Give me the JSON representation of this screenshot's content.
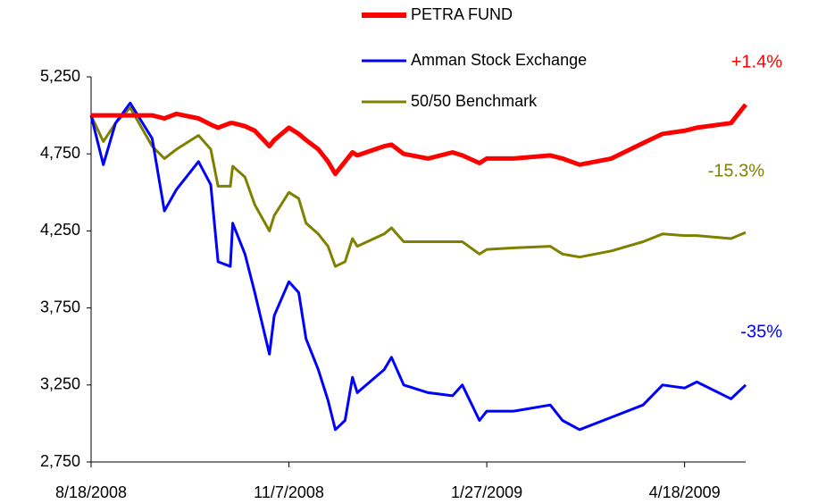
{
  "chart_data": {
    "type": "line",
    "x": [
      "8/18/2008",
      "8/23/2008",
      "8/28/2008",
      "9/3/2008",
      "9/12/2008",
      "9/17/2008",
      "9/22/2008",
      "10/1/2008",
      "10/6/2008",
      "10/9/2008",
      "10/14/2008",
      "10/15/2008",
      "10/20/2008",
      "10/24/2008",
      "10/30/2008",
      "11/1/2008",
      "11/7/2008",
      "11/11/2008",
      "11/14/2008",
      "11/19/2008",
      "11/23/2008",
      "11/26/2008",
      "11/30/2008",
      "12/3/2008",
      "12/5/2008",
      "12/16/2008",
      "12/19/2008",
      "12/24/2008",
      "1/3/2009",
      "1/13/2009",
      "1/17/2009",
      "1/24/2009",
      "1/27/2009",
      "2/7/2009",
      "2/22/2009",
      "2/27/2009",
      "3/6/2009",
      "3/19/2009",
      "4/1/2009",
      "4/9/2009",
      "4/18/2009",
      "4/23/2009",
      "5/7/2009",
      "5/13/2009"
    ],
    "series": [
      {
        "name": "PETRA FUND",
        "color": "#ff0000",
        "values": [
          5000,
          5000,
          5000,
          5000,
          5000,
          4980,
          5010,
          4980,
          4940,
          4920,
          4950,
          4950,
          4930,
          4900,
          4800,
          4840,
          4920,
          4880,
          4840,
          4780,
          4700,
          4620,
          4700,
          4760,
          4740,
          4800,
          4810,
          4750,
          4720,
          4760,
          4740,
          4690,
          4720,
          4720,
          4740,
          4720,
          4680,
          4720,
          4820,
          4880,
          4900,
          4920,
          4950,
          5070
        ]
      },
      {
        "name": "Amman Stock Exchange",
        "color": "#0000ff",
        "values": [
          5000,
          4680,
          4950,
          5080,
          4850,
          4380,
          4520,
          4700,
          4550,
          4050,
          4020,
          4300,
          4100,
          3850,
          3450,
          3700,
          3920,
          3850,
          3550,
          3350,
          3150,
          2960,
          3020,
          3300,
          3200,
          3350,
          3430,
          3250,
          3200,
          3180,
          3250,
          3020,
          3080,
          3080,
          3120,
          3020,
          2960,
          3040,
          3120,
          3250,
          3230,
          3270,
          3160,
          3250
        ]
      },
      {
        "name": "50/50 Benchmark",
        "color": "#808000",
        "values": [
          5000,
          4830,
          4950,
          5050,
          4800,
          4720,
          4780,
          4870,
          4780,
          4540,
          4540,
          4670,
          4600,
          4420,
          4250,
          4350,
          4500,
          4460,
          4300,
          4230,
          4150,
          4020,
          4050,
          4200,
          4150,
          4230,
          4270,
          4180,
          4180,
          4180,
          4180,
          4100,
          4130,
          4140,
          4150,
          4100,
          4080,
          4120,
          4180,
          4230,
          4220,
          4220,
          4200,
          4240
        ]
      }
    ],
    "xlim": [
      "8/18/2008",
      "5/13/2009"
    ],
    "xticks": [
      "8/18/2008",
      "11/7/2008",
      "1/27/2009",
      "4/18/2009"
    ],
    "ylim": [
      2750,
      5250
    ],
    "yticks": [
      {
        "value": 2750,
        "label": "2,750"
      },
      {
        "value": 3250,
        "label": "3,250"
      },
      {
        "value": 3750,
        "label": "3,750"
      },
      {
        "value": 4250,
        "label": "4,250"
      },
      {
        "value": 4750,
        "label": "4,750"
      },
      {
        "value": 5250,
        "label": "5,250"
      }
    ],
    "annotations": [
      {
        "text": "+1.4%",
        "color": "#ff0000"
      },
      {
        "text": "-15.3%",
        "color": "#808000"
      },
      {
        "text": "-35%",
        "color": "#0000ff"
      }
    ]
  }
}
